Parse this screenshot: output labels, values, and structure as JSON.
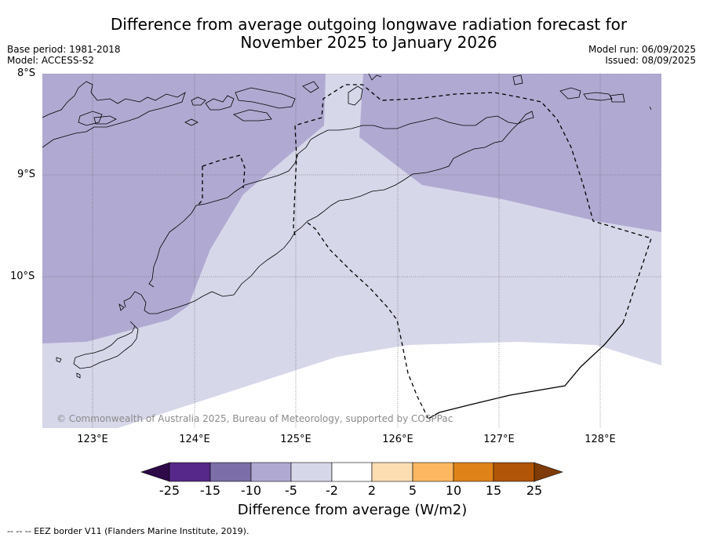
{
  "title": {
    "line1": "Difference from average outgoing longwave radiation forecast for",
    "line2": "November 2025 to January 2026"
  },
  "meta": {
    "base_period": "Base period: 1981-2018",
    "model": "Model: ACCESS-S2",
    "model_run": "Model run: 06/09/2025",
    "issued": "Issued: 08/09/2025"
  },
  "map": {
    "lat_labels": [
      "8°S",
      "9°S",
      "10°S"
    ],
    "lon_labels": [
      "123°E",
      "124°E",
      "125°E",
      "126°E",
      "127°E",
      "128°E"
    ],
    "copyright": "© Commonwealth of Australia 2025, Bureau of Meteorology, supported by COSPPac",
    "colors": {
      "bin_minus10_minus5": "#b0aad2",
      "bin_minus5_minus2": "#d7d7ea",
      "bin_minus2_2": "#ffffff",
      "border": "#000000"
    }
  },
  "legend": {
    "ticks": [
      "-25",
      "-15",
      "-10",
      "-5",
      "-2",
      "2",
      "5",
      "10",
      "15",
      "25"
    ],
    "colors": [
      "#2e0a48",
      "#55288a",
      "#7c6ea8",
      "#b0aad2",
      "#d7d7ea",
      "#ffffff",
      "#fddeb3",
      "#fdb761",
      "#df8319",
      "#b15608",
      "#7f3b08"
    ],
    "title": "Difference from average (W/m2)"
  },
  "footnote": "--  --  -- EEZ border V11 (Flanders Marine Institute, 2019)."
}
